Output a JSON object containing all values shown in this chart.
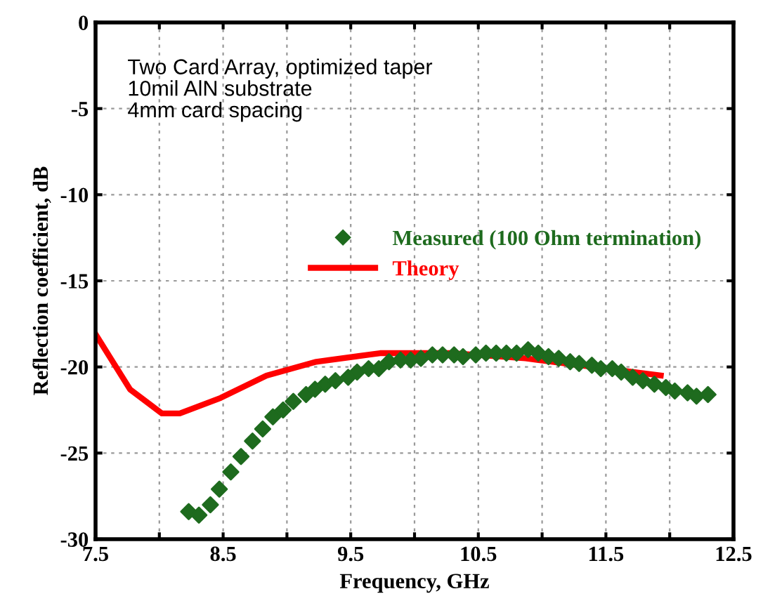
{
  "chart_data": {
    "type": "line",
    "xlabel": "Frequency, GHz",
    "ylabel": "Reflection coefficient, dB",
    "annotations": [
      "Two Card Array, optimized taper\n10mil AlN substrate\n4mm card spacing"
    ],
    "xlim": [
      7.5,
      12.5
    ],
    "ylim": [
      -30,
      0
    ],
    "xticks": [
      7.5,
      {
        "value": 8.0,
        "label": null
      },
      8.5,
      {
        "value": 9.0,
        "label": null
      },
      9.5,
      {
        "value": 10.0,
        "label": null
      },
      10.5,
      {
        "value": 11.0,
        "label": null
      },
      11.5,
      {
        "value": 12.0,
        "label": null
      },
      12.5
    ],
    "yticks": [
      -30,
      -25,
      -20,
      -15,
      -10,
      -5,
      0
    ],
    "grid": true,
    "legend": "center right",
    "series": [
      {
        "name": "Measured (100 Ohm termination)",
        "type": "scatter",
        "marker": "diamond",
        "color": "#1e6b1e",
        "x": [
          8.23,
          8.31,
          8.4,
          8.47,
          8.56,
          8.64,
          8.73,
          8.81,
          8.89,
          8.97,
          9.05,
          9.15,
          9.22,
          9.3,
          9.38,
          9.48,
          9.55,
          9.64,
          9.72,
          9.8,
          9.89,
          9.97,
          10.05,
          10.14,
          10.22,
          10.31,
          10.38,
          10.48,
          10.56,
          10.64,
          10.72,
          10.8,
          10.89,
          10.97,
          11.05,
          11.13,
          11.22,
          11.29,
          11.39,
          11.46,
          11.55,
          11.62,
          11.71,
          11.79,
          11.88,
          11.97,
          12.04,
          12.14,
          12.21,
          12.3
        ],
        "values": [
          -28.4,
          -28.6,
          -28.0,
          -27.1,
          -26.1,
          -25.2,
          -24.3,
          -23.6,
          -22.9,
          -22.5,
          -22.0,
          -21.6,
          -21.3,
          -21.0,
          -20.8,
          -20.6,
          -20.3,
          -20.1,
          -20.1,
          -19.7,
          -19.6,
          -19.6,
          -19.5,
          -19.3,
          -19.3,
          -19.3,
          -19.4,
          -19.3,
          -19.2,
          -19.2,
          -19.2,
          -19.2,
          -19.0,
          -19.2,
          -19.4,
          -19.5,
          -19.7,
          -19.8,
          -19.9,
          -20.1,
          -20.1,
          -20.3,
          -20.6,
          -20.8,
          -21.0,
          -21.2,
          -21.4,
          -21.5,
          -21.7,
          -21.6
        ]
      },
      {
        "name": "Theory",
        "marker": "none",
        "line_style": "solid",
        "color": "#ff0000",
        "x": [
          7.5,
          7.77,
          8.02,
          8.16,
          8.48,
          8.84,
          9.23,
          9.73,
          10.3,
          10.87,
          11.4,
          11.93
        ],
        "values": [
          -18.1,
          -21.3,
          -22.7,
          -22.7,
          -21.8,
          -20.5,
          -19.7,
          -19.2,
          -19.2,
          -19.5,
          -20.0,
          -20.5
        ]
      }
    ]
  }
}
